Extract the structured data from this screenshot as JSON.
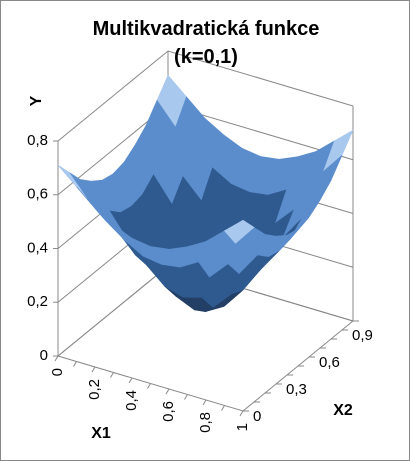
{
  "chart_data": {
    "type": "surface",
    "title": "Multikvadratická funkce (k=0,1)",
    "y_label": "Y",
    "x1_label": "X1",
    "x2_label": "X2",
    "x1_categories": [
      "0",
      null,
      "0,2",
      null,
      "0,4",
      null,
      "0,6",
      null,
      "0,8",
      null,
      "1"
    ],
    "x2_categories": [
      "0",
      null,
      null,
      "0,3",
      null,
      null,
      "0,6",
      null,
      null,
      "0,9",
      null
    ],
    "values": [
      [
        0.71,
        0.65,
        0.59,
        0.55,
        0.52,
        0.51,
        0.52,
        0.55,
        0.59,
        0.65,
        0.71
      ],
      [
        0.65,
        0.57,
        0.51,
        0.46,
        0.42,
        0.41,
        0.42,
        0.46,
        0.51,
        0.57,
        0.65
      ],
      [
        0.59,
        0.51,
        0.44,
        0.37,
        0.33,
        0.32,
        0.33,
        0.37,
        0.44,
        0.51,
        0.59
      ],
      [
        0.55,
        0.46,
        0.37,
        0.3,
        0.24,
        0.22,
        0.24,
        0.3,
        0.37,
        0.46,
        0.55
      ],
      [
        0.52,
        0.42,
        0.33,
        0.24,
        0.17,
        0.14,
        0.17,
        0.24,
        0.33,
        0.42,
        0.52
      ],
      [
        0.51,
        0.41,
        0.32,
        0.22,
        0.14,
        0.1,
        0.14,
        0.22,
        0.32,
        0.41,
        0.51
      ],
      [
        0.52,
        0.42,
        0.33,
        0.24,
        0.17,
        0.14,
        0.17,
        0.24,
        0.33,
        0.42,
        0.52
      ],
      [
        0.55,
        0.46,
        0.37,
        0.3,
        0.24,
        0.22,
        0.24,
        0.3,
        0.37,
        0.46,
        0.55
      ],
      [
        0.59,
        0.51,
        0.44,
        0.37,
        0.33,
        0.32,
        0.33,
        0.37,
        0.44,
        0.51,
        0.59
      ],
      [
        0.65,
        0.57,
        0.51,
        0.46,
        0.42,
        0.41,
        0.42,
        0.46,
        0.51,
        0.57,
        0.65
      ],
      [
        0.71,
        0.65,
        0.59,
        0.55,
        0.52,
        0.51,
        0.52,
        0.55,
        0.59,
        0.65,
        0.71
      ]
    ],
    "ylim": [
      0,
      0.8
    ],
    "yticks": [
      0,
      {
        "value": 0.2,
        "label": "0,2"
      },
      {
        "value": 0.4,
        "label": "0,4"
      },
      {
        "value": 0.6,
        "label": "0,6"
      },
      {
        "value": 0.8,
        "label": "0,8"
      }
    ],
    "band_colors": [
      "#233f66",
      "#2f5a8f",
      "#5b8dcc",
      "#a9c8ee"
    ],
    "grid": true
  }
}
